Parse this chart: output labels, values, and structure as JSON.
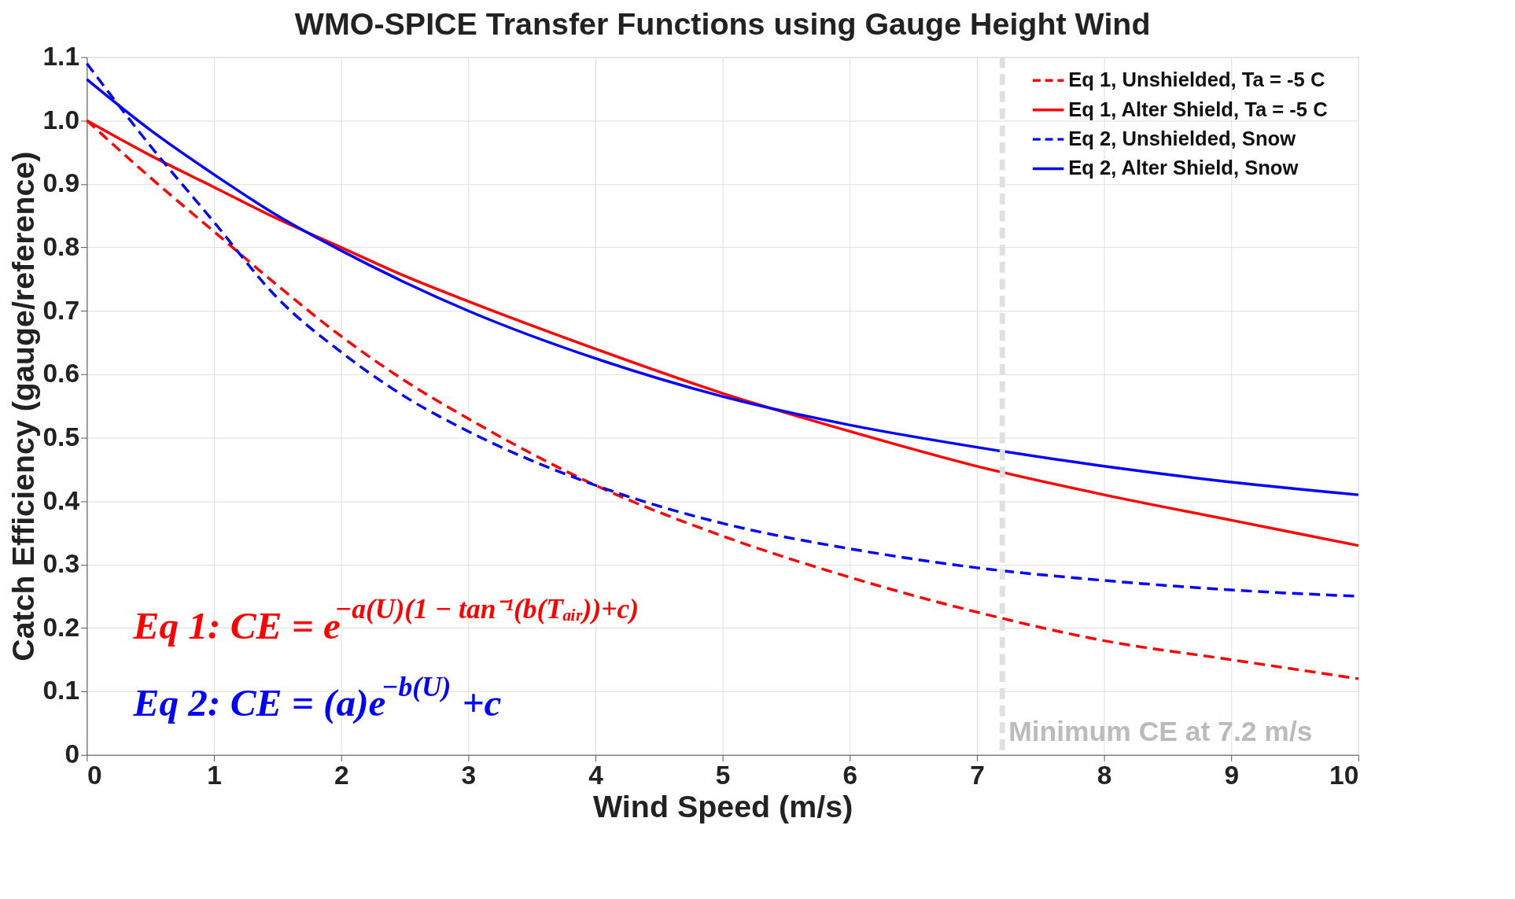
{
  "chart_data": {
    "type": "line",
    "title": "WMO-SPICE Transfer Functions using Gauge Height Wind",
    "xlabel": "Wind Speed (m/s)",
    "ylabel": "Catch Efficiency (gauge/reference)",
    "x": [
      0,
      0.5,
      1,
      1.5,
      2,
      2.5,
      3,
      4,
      5,
      6,
      7,
      8,
      9,
      10
    ],
    "series": [
      {
        "name": "Eq 1, Unshielded, Ta = -5 C",
        "color": "#ff0000",
        "line_style": "dashed",
        "values": [
          1.0,
          0.91,
          0.825,
          0.74,
          0.66,
          0.59,
          0.53,
          0.425,
          0.345,
          0.28,
          0.225,
          0.18,
          0.15,
          0.12
        ]
      },
      {
        "name": "Eq 1, Alter Shield, Ta = -5 C",
        "color": "#ff0000",
        "line_style": "solid",
        "values": [
          1.0,
          0.945,
          0.895,
          0.845,
          0.8,
          0.755,
          0.715,
          0.64,
          0.57,
          0.51,
          0.455,
          0.41,
          0.37,
          0.33
        ]
      },
      {
        "name": "Eq 2, Unshielded, Snow",
        "color": "#0000ff",
        "line_style": "dashed",
        "values": [
          1.09,
          0.96,
          0.84,
          0.72,
          0.635,
          0.565,
          0.51,
          0.425,
          0.365,
          0.325,
          0.295,
          0.275,
          0.26,
          0.25
        ]
      },
      {
        "name": "Eq 2, Alter Shield, Snow",
        "color": "#0000ff",
        "line_style": "solid",
        "values": [
          1.065,
          0.985,
          0.915,
          0.85,
          0.795,
          0.745,
          0.7,
          0.625,
          0.565,
          0.52,
          0.485,
          0.455,
          0.43,
          0.41
        ]
      }
    ],
    "xlim": [
      0,
      10
    ],
    "ylim": [
      0,
      1.1
    ],
    "xticks": [
      0,
      1,
      2,
      3,
      4,
      5,
      6,
      7,
      8,
      9,
      10
    ],
    "yticks": [
      0,
      0.1,
      0.2,
      0.3,
      0.4,
      0.5,
      0.6,
      0.7,
      0.8,
      0.9,
      {
        "value": 1,
        "label": "1.0"
      },
      1.1
    ],
    "ref_lines": [
      {
        "axis": "x",
        "value": 7.2,
        "label": "Minimum CE at 7.2 m/s",
        "color": "#e0e0e0",
        "line_style": "dashed"
      }
    ],
    "annotations": [
      "Eq 1:  CE = e$^{−a(U)(1 − tan⁻¹(b(Tₐᵢᵣ))+c)}$",
      "Eq 2:  CE = (a)e$^{−b(U)}$+c"
    ],
    "grid": true,
    "legend": "top right"
  }
}
